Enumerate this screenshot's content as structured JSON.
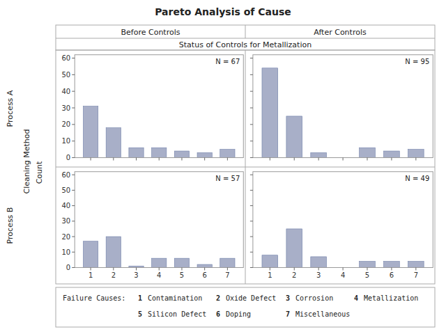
{
  "chart_data": [
    {
      "type": "bar",
      "title": "Pareto Analysis of Cause",
      "subtitle": "Status of Controls for Metallization",
      "y_label": "Count",
      "x": [
        1,
        2,
        3,
        4,
        5,
        6,
        7
      ],
      "values": [
        31,
        18,
        6,
        6,
        4,
        3,
        5
      ],
      "color": "#a8afc8",
      "xlim": [
        0.3,
        7.7
      ],
      "xticks": [
        1,
        2,
        3,
        4,
        5,
        6,
        7
      ],
      "ylim": [
        0,
        62
      ],
      "yticks": [
        0,
        10,
        20,
        30,
        40,
        50,
        60
      ],
      "grid": false,
      "tick_labels": "y",
      "annotations": [
        "N = 67",
        "Before Controls",
        "Process A",
        "Cleaning Method",
        "Failure Causes:",
        "1",
        "Contamination",
        "2",
        "Oxide Defect",
        "3",
        "Corrosion",
        "4",
        "Metallization",
        "5",
        "Silicon Defect",
        "6",
        "Doping",
        "7",
        "Miscellaneous"
      ]
    },
    {
      "type": "bar",
      "x": [
        1,
        2,
        3,
        4,
        5,
        6,
        7
      ],
      "values": [
        54,
        25,
        3,
        0,
        6,
        4,
        5
      ],
      "color": "#a8afc8",
      "xlim": [
        0.3,
        7.7
      ],
      "xticks": [
        1,
        2,
        3,
        4,
        5,
        6,
        7
      ],
      "ylim": [
        0,
        62
      ],
      "yticks": [
        0,
        10,
        20,
        30,
        40,
        50,
        60
      ],
      "grid": false,
      "tick_labels": false,
      "annotations": [
        "N = 95",
        "After Controls"
      ]
    },
    {
      "type": "bar",
      "x": [
        1,
        2,
        3,
        4,
        5,
        6,
        7
      ],
      "values": [
        17,
        20,
        1,
        6,
        6,
        2,
        6
      ],
      "color": "#a8afc8",
      "xlim": [
        0.3,
        7.7
      ],
      "xticks": [
        1,
        2,
        3,
        4,
        5,
        6,
        7
      ],
      "ylim": [
        0,
        62
      ],
      "yticks": [
        0,
        10,
        20,
        30,
        40,
        50,
        60
      ],
      "grid": false,
      "annotations": [
        "N = 57",
        "Process B"
      ]
    },
    {
      "type": "bar",
      "x": [
        1,
        2,
        3,
        4,
        5,
        6,
        7
      ],
      "values": [
        8,
        25,
        7,
        0,
        4,
        4,
        4
      ],
      "color": "#a8afc8",
      "xlim": [
        0.3,
        7.7
      ],
      "xticks": [
        1,
        2,
        3,
        4,
        5,
        6,
        7
      ],
      "ylim": [
        0,
        62
      ],
      "yticks": [
        0,
        10,
        20,
        30,
        40,
        50,
        60
      ],
      "grid": false,
      "tick_labels": "x",
      "annotations": [
        "N = 49"
      ]
    }
  ]
}
